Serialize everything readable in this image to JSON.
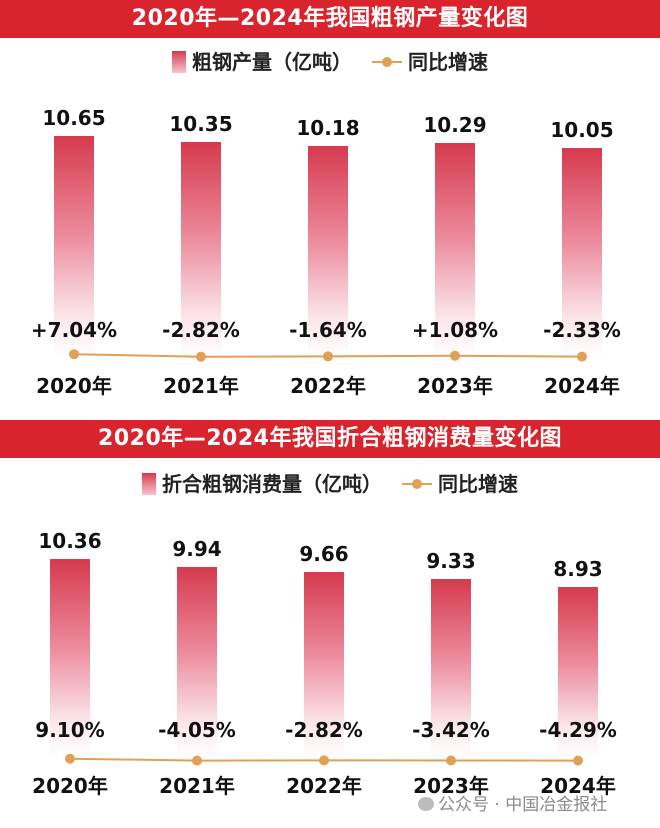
{
  "top": {
    "title": "2020年—2024年我国粗钢产量变化图",
    "legend_bar": "粗钢产量（亿吨）",
    "legend_line": "同比增速",
    "chart_data": {
      "type": "bar",
      "categories": [
        "2020年",
        "2021年",
        "2022年",
        "2023年",
        "2024年"
      ],
      "series": [
        {
          "name": "粗钢产量（亿吨）",
          "values": [
            10.65,
            10.35,
            10.18,
            10.29,
            10.05
          ],
          "labels": [
            "10.65",
            "10.35",
            "10.18",
            "10.29",
            "10.05"
          ]
        },
        {
          "name": "同比增速",
          "values": [
            7.04,
            -2.82,
            -1.64,
            1.08,
            -2.33
          ],
          "labels": [
            "+7.04%",
            "-2.82%",
            "-1.64%",
            "+1.08%",
            "-2.33%"
          ]
        }
      ],
      "ylim": [
        0,
        11.5
      ],
      "colors": {
        "bar_top": "#d63a4e",
        "line": "#e0a055"
      }
    }
  },
  "bottom": {
    "title": "2020年—2024年我国折合粗钢消费量变化图",
    "legend_bar": "折合粗钢消费量（亿吨）",
    "legend_line": "同比增速",
    "chart_data": {
      "type": "bar",
      "categories": [
        "2020年",
        "2021年",
        "2022年",
        "2023年",
        "2024年"
      ],
      "series": [
        {
          "name": "折合粗钢消费量（亿吨）",
          "values": [
            10.36,
            9.94,
            9.66,
            9.33,
            8.93
          ],
          "labels": [
            "10.36",
            "9.94",
            "9.66",
            "9.33",
            "8.93"
          ]
        },
        {
          "name": "同比增速",
          "values": [
            9.1,
            -4.05,
            -2.82,
            -3.42,
            -4.29
          ],
          "labels": [
            "9.10%",
            "-4.05%",
            "-2.82%",
            "-3.42%",
            "-4.29%"
          ]
        }
      ],
      "ylim": [
        0,
        11.3
      ],
      "colors": {
        "bar_top": "#d63a4e",
        "line": "#e0a055"
      }
    }
  },
  "watermark": "公众号 · 中国冶金报社",
  "watermark_icon": "wechat-icon"
}
